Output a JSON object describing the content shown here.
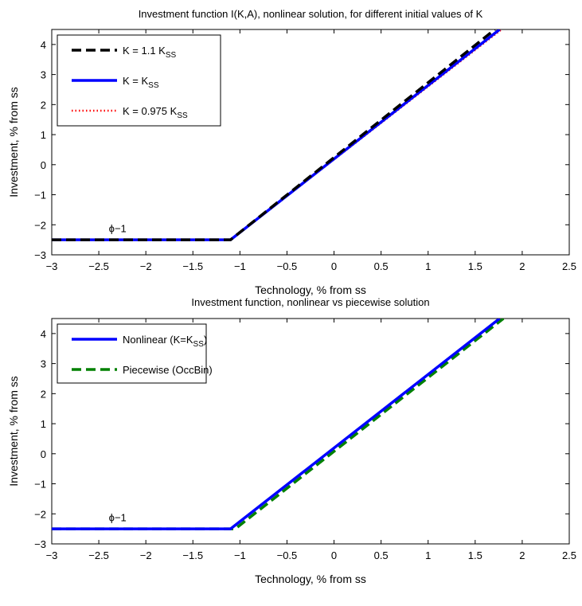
{
  "chart_data": [
    {
      "type": "line",
      "title": "Investment function I(K,A), nonlinear solution, for different initial values of K",
      "xlabel": "Technology, % from ss",
      "ylabel": "Investment, % from ss",
      "xlim": [
        -3,
        2.5
      ],
      "ylim": [
        -3,
        4.5
      ],
      "xticks": [
        -3,
        -2.5,
        -2,
        -1.5,
        -1,
        -0.5,
        0,
        0.5,
        1,
        1.5,
        2,
        2.5
      ],
      "yticks": [
        -3,
        -2,
        -1,
        0,
        1,
        2,
        3,
        4
      ],
      "xtick_labels": [
        "−3",
        "−2.5",
        "−2",
        "−1.5",
        "−1",
        "−0.5",
        "0",
        "0.5",
        "1",
        "1.5",
        "2",
        "2.5"
      ],
      "ytick_labels": [
        "−3",
        "−2",
        "−1",
        "0",
        "1",
        "2",
        "3",
        "4"
      ],
      "annotation": {
        "text": "ϕ−1",
        "x": -2.3,
        "y": -2.25
      },
      "legend_location": "top-left",
      "grid": false,
      "series": [
        {
          "name": "K = 1.1 K",
          "subscript": "SS",
          "color": "#000000",
          "style": "dashed",
          "x": [
            -3,
            -1.1,
            1.71
          ],
          "y": [
            -2.5,
            -2.5,
            4.5
          ]
        },
        {
          "name": "K = K",
          "subscript": "SS",
          "color": "#0000ff",
          "style": "solid",
          "x": [
            -3,
            -1.1,
            1.76
          ],
          "y": [
            -2.5,
            -2.5,
            4.5
          ]
        },
        {
          "name": "K = 0.975 K",
          "subscript": "SS",
          "color": "#ff0000",
          "style": "dotted",
          "x": [
            -3,
            -1.1,
            1.78
          ],
          "y": [
            -2.5,
            -2.5,
            4.5
          ]
        }
      ]
    },
    {
      "type": "line",
      "title": "Investment function, nonlinear vs piecewise solution",
      "xlabel": "Technology, % from ss",
      "ylabel": "Investment, % from ss",
      "xlim": [
        -3,
        2.5
      ],
      "ylim": [
        -3,
        4.5
      ],
      "xticks": [
        -3,
        -2.5,
        -2,
        -1.5,
        -1,
        -0.5,
        0,
        0.5,
        1,
        1.5,
        2,
        2.5
      ],
      "yticks": [
        -3,
        -2,
        -1,
        0,
        1,
        2,
        3,
        4
      ],
      "xtick_labels": [
        "−3",
        "−2.5",
        "−2",
        "−1.5",
        "−1",
        "−0.5",
        "0",
        "0.5",
        "1",
        "1.5",
        "2",
        "2.5"
      ],
      "ytick_labels": [
        "−3",
        "−2",
        "−1",
        "0",
        "1",
        "2",
        "3",
        "4"
      ],
      "annotation": {
        "text": "ϕ−1",
        "x": -2.3,
        "y": -2.25
      },
      "legend_location": "top-left",
      "grid": false,
      "series": [
        {
          "name": "Nonlinear (K=K",
          "subscript": "SS",
          "suffix": ")",
          "color": "#0000ff",
          "style": "solid",
          "x": [
            -3,
            -1.1,
            1.76
          ],
          "y": [
            -2.5,
            -2.5,
            4.5
          ]
        },
        {
          "name": "Piecewise (OccBin)",
          "color": "#008000",
          "style": "dashed",
          "x": [
            -3,
            -1.05,
            1.8
          ],
          "y": [
            -2.5,
            -2.5,
            4.5
          ]
        }
      ]
    }
  ]
}
